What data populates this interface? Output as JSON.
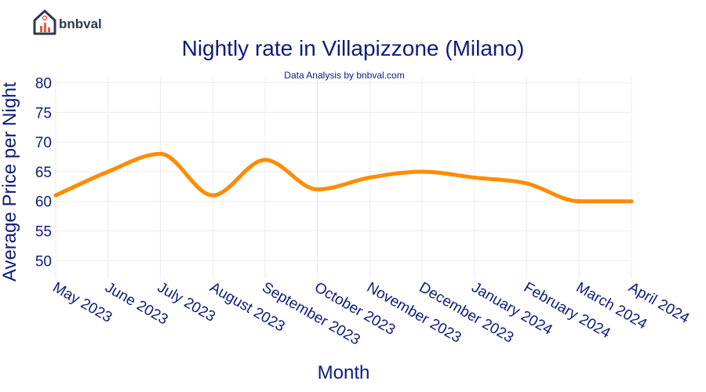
{
  "brand": {
    "name": "bnbval",
    "icon": "house-chart-icon"
  },
  "chart_data": {
    "type": "line",
    "title": "Nightly rate in Villapizzone (Milano)",
    "subtitle": "Data Analysis by bnbval.com",
    "xlabel": "Month",
    "ylabel": "Average Price per Night",
    "categories": [
      "May 2023",
      "June 2023",
      "July 2023",
      "August 2023",
      "September 2023",
      "October 2023",
      "November 2023",
      "December 2023",
      "January 2024",
      "February 2024",
      "March 2024",
      "April 2024"
    ],
    "series": [
      {
        "values": [
          61,
          65,
          68,
          61,
          67,
          62,
          64,
          65,
          64,
          63,
          60,
          60
        ],
        "color": "#ff8c00"
      }
    ],
    "ylim": [
      47,
      81
    ],
    "yticks": [
      50,
      55,
      60,
      65,
      70,
      75,
      80
    ],
    "grid": true,
    "legend": "none"
  }
}
